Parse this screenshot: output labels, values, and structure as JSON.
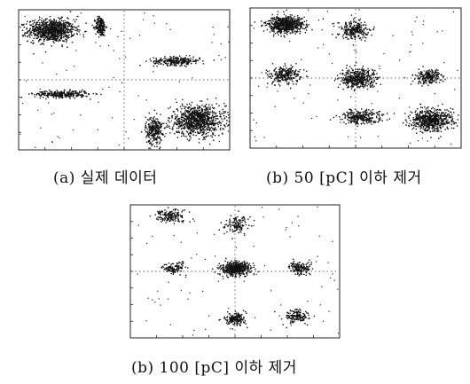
{
  "figure": {
    "captions": [
      "(a) 실제 데이터",
      "(b) 50 [pC] 이하 제거",
      "(b) 100 [pC] 이하 제거"
    ]
  },
  "chart_data": [
    {
      "type": "scatter",
      "title": "",
      "xlabel": "",
      "ylabel": "",
      "x_axis": "horizontal ticks along bottom edge, unlabeled (illegible)",
      "y_axis": "vertical ticks along left edge, unlabeled (illegible)",
      "grid": false,
      "clusters": [
        {
          "cx": -0.7,
          "cy": 0.72,
          "sx": 0.11,
          "sy": 0.08,
          "n": 900
        },
        {
          "cx": -0.23,
          "cy": 0.78,
          "sx": 0.025,
          "sy": 0.07,
          "n": 200
        },
        {
          "cx": 0.5,
          "cy": 0.28,
          "sx": 0.11,
          "sy": 0.03,
          "n": 260
        },
        {
          "cx": -0.6,
          "cy": -0.2,
          "sx": 0.13,
          "sy": 0.025,
          "n": 300
        },
        {
          "cx": 0.28,
          "cy": -0.72,
          "sx": 0.04,
          "sy": 0.1,
          "n": 260
        },
        {
          "cx": 0.7,
          "cy": -0.58,
          "sx": 0.13,
          "sy": 0.11,
          "n": 900
        }
      ],
      "reference_lines": {
        "center_x": 0.0,
        "center_y": 0.0
      }
    },
    {
      "type": "scatter",
      "title": "",
      "xlabel": "",
      "ylabel": "",
      "grid": false,
      "clusters": [
        {
          "cx": -0.68,
          "cy": 0.78,
          "sx": 0.09,
          "sy": 0.06,
          "n": 650
        },
        {
          "cx": -0.02,
          "cy": 0.7,
          "sx": 0.07,
          "sy": 0.07,
          "n": 260
        },
        {
          "cx": -0.68,
          "cy": 0.05,
          "sx": 0.07,
          "sy": 0.06,
          "n": 260
        },
        {
          "cx": 0.02,
          "cy": 0.0,
          "sx": 0.09,
          "sy": 0.07,
          "n": 420
        },
        {
          "cx": 0.7,
          "cy": 0.02,
          "sx": 0.06,
          "sy": 0.05,
          "n": 220
        },
        {
          "cx": 0.05,
          "cy": -0.55,
          "sx": 0.1,
          "sy": 0.05,
          "n": 280
        },
        {
          "cx": 0.72,
          "cy": -0.6,
          "sx": 0.1,
          "sy": 0.08,
          "n": 650
        }
      ],
      "reference_lines": {
        "center_x": 0.0,
        "center_y": 0.0
      }
    },
    {
      "type": "scatter",
      "title": "",
      "xlabel": "",
      "ylabel": "",
      "grid": false,
      "clusters": [
        {
          "cx": -0.62,
          "cy": 0.85,
          "sx": 0.07,
          "sy": 0.05,
          "n": 160
        },
        {
          "cx": 0.02,
          "cy": 0.72,
          "sx": 0.06,
          "sy": 0.07,
          "n": 120
        },
        {
          "cx": -0.6,
          "cy": 0.05,
          "sx": 0.05,
          "sy": 0.05,
          "n": 110
        },
        {
          "cx": 0.0,
          "cy": 0.05,
          "sx": 0.07,
          "sy": 0.05,
          "n": 520
        },
        {
          "cx": 0.62,
          "cy": 0.05,
          "sx": 0.05,
          "sy": 0.05,
          "n": 150
        },
        {
          "cx": 0.0,
          "cy": -0.72,
          "sx": 0.05,
          "sy": 0.05,
          "n": 160
        },
        {
          "cx": 0.58,
          "cy": -0.68,
          "sx": 0.06,
          "sy": 0.05,
          "n": 150
        }
      ],
      "reference_lines": {
        "center_x": 0.0,
        "center_y": 0.0
      }
    }
  ]
}
